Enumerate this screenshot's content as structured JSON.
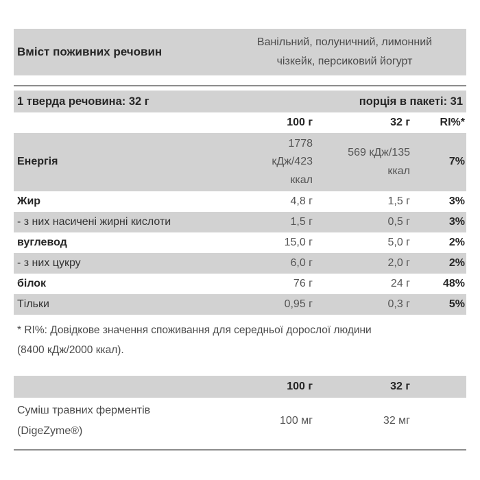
{
  "header": {
    "title": "Вміст поживних речовин",
    "flavors": "Ванільний, полуничний, лимонний чізкейк, персиковий йогурт"
  },
  "serving": {
    "left": "1 тверда речовина: 32 г",
    "right": "порція в пакеті: 31"
  },
  "columns": {
    "per100": "100 г",
    "per32": "32 г",
    "ri": "RI%*"
  },
  "rows": [
    {
      "label": "Енергія",
      "v100": "1778 кДж/423 ккал",
      "v32": "569 кДж/135 ккал",
      "ri": "7%"
    },
    {
      "label": "Жир",
      "v100": "4,8 г",
      "v32": "1,5 г",
      "ri": "3%"
    },
    {
      "label": "- з них насичені жирні кислоти",
      "v100": "1,5 г",
      "v32": "0,5 г",
      "ri": "3%"
    },
    {
      "label": "вуглевод",
      "v100": "15,0 г",
      "v32": "5,0 г",
      "ri": "2%"
    },
    {
      "label": "- з них цукру",
      "v100": "6,0 г",
      "v32": "2,0 г",
      "ri": "2%"
    },
    {
      "label": "білок",
      "v100": "76 г",
      "v32": "24 г",
      "ri": "48%"
    },
    {
      "label": "Тільки",
      "v100": "0,95 г",
      "v32": "0,3 г",
      "ri": "5%"
    }
  ],
  "footnote": "* RI%: Довідкове значення споживання для середньої дорослої людини (8400 кДж/2000 ккал).",
  "enzymes": {
    "columns": {
      "per100": "100 г",
      "per32": "32 г"
    },
    "label": "Суміш травних ферментів (DigeZyme®)",
    "v100": "100 мг",
    "v32": "32 мг"
  },
  "colors": {
    "row_shade": "#d2d2d2",
    "divider": "#8c8c8c",
    "text_bold": "#262626",
    "text_regular": "#555555"
  }
}
